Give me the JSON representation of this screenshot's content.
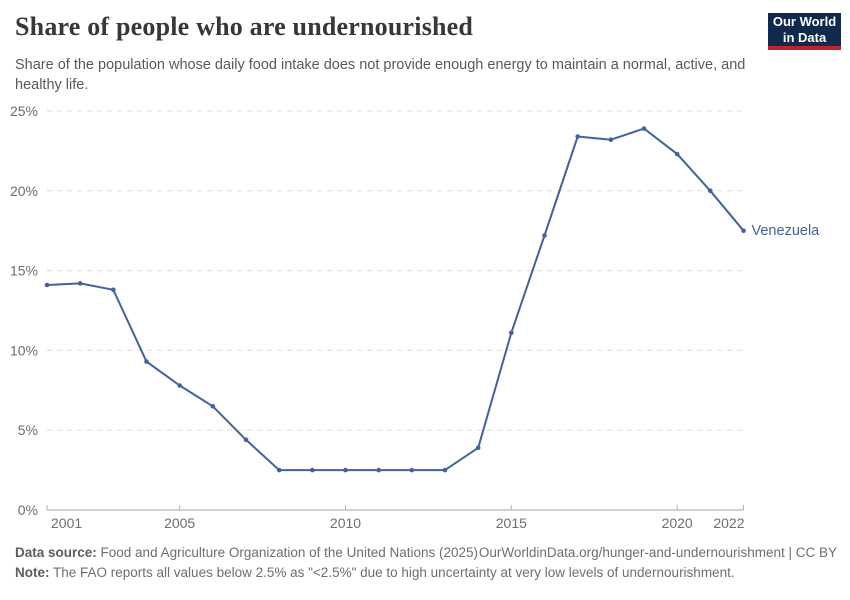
{
  "header": {
    "title": "Share of people who are undernourished",
    "subtitle": "Share of the population whose daily food intake does not provide enough energy to maintain a normal, active, and healthy life.",
    "logo": {
      "line1": "Our World",
      "line2": "in Data",
      "bg_color": "#102a4e",
      "accent_color": "#be232e"
    }
  },
  "chart_data": {
    "type": "line",
    "title": "Share of people who are undernourished",
    "xlabel": "",
    "ylabel": "",
    "xlim": [
      2001,
      2022
    ],
    "ylim": [
      0,
      25
    ],
    "x_ticks": [
      2001,
      2005,
      2010,
      2015,
      2020,
      2022
    ],
    "y_ticks": [
      0,
      5,
      10,
      15,
      20,
      25
    ],
    "y_tick_suffix": "%",
    "grid": "horizontal-dashed",
    "legend_position": "end-of-line-label",
    "series": [
      {
        "name": "Venezuela",
        "color": "#43619c",
        "x": [
          2001,
          2002,
          2003,
          2004,
          2005,
          2006,
          2007,
          2008,
          2009,
          2010,
          2011,
          2012,
          2013,
          2014,
          2015,
          2016,
          2017,
          2018,
          2019,
          2020,
          2021,
          2022
        ],
        "values": [
          14.1,
          14.2,
          13.8,
          9.3,
          7.8,
          6.5,
          4.4,
          2.5,
          2.5,
          2.5,
          2.5,
          2.5,
          2.5,
          3.9,
          11.1,
          17.2,
          23.4,
          23.2,
          23.9,
          22.3,
          20.0,
          17.5
        ]
      }
    ],
    "colors": {
      "grid": "#dcdcdc",
      "axis": "#a3a3a3",
      "tick": "#b3b3b3",
      "tick_label": "#6e6e6e"
    }
  },
  "footer": {
    "source_label": "Data source:",
    "source_text": " Food and Agriculture Organization of the United Nations (2025)",
    "link": "OurWorldinData.org/hunger-and-undernourishment | CC BY",
    "note_label": "Note:",
    "note_text": " The FAO reports all values below 2.5% as \"<2.5%\" due to high uncertainty at very low levels of undernourishment."
  }
}
